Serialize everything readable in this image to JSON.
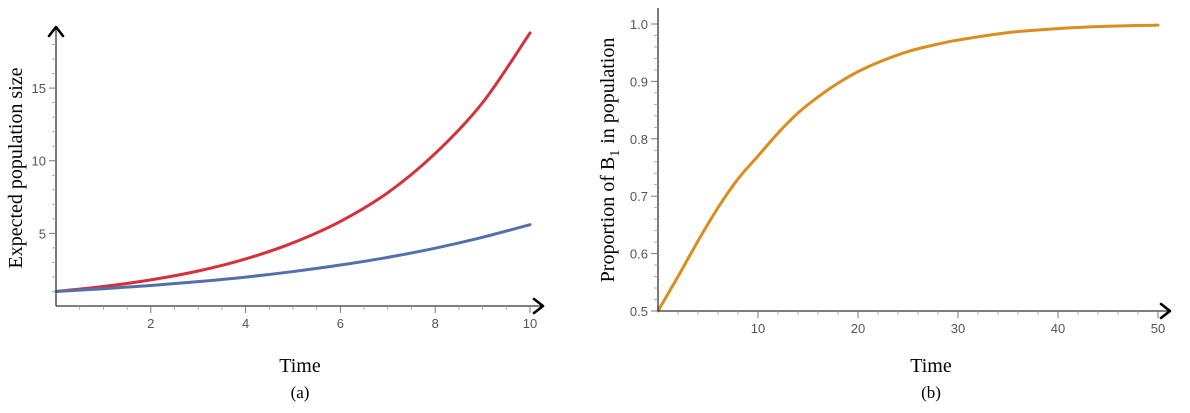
{
  "chart_data": [
    {
      "type": "line",
      "panel_label": "(a)",
      "xlabel": "Time",
      "ylabel": "Expected population size",
      "xlim": [
        0,
        10
      ],
      "ylim": [
        0,
        19
      ],
      "x_ticks": [
        2,
        4,
        6,
        8,
        10
      ],
      "y_ticks": [
        5,
        10,
        15
      ],
      "grid": false,
      "series": [
        {
          "color": "#d4313b",
          "x": [
            0,
            1,
            2,
            3,
            4,
            5,
            6,
            7,
            8,
            9,
            10
          ],
          "values": [
            1.0,
            1.34,
            1.8,
            2.41,
            3.24,
            4.35,
            5.82,
            7.8,
            10.5,
            14.0,
            18.8
          ]
        },
        {
          "color": "#5470a8",
          "x": [
            0,
            1,
            2,
            3,
            4,
            5,
            6,
            7,
            8,
            9,
            10
          ],
          "values": [
            1.0,
            1.19,
            1.41,
            1.68,
            1.99,
            2.37,
            2.82,
            3.35,
            3.98,
            4.73,
            5.6
          ]
        }
      ]
    },
    {
      "type": "line",
      "panel_label": "(b)",
      "xlabel": "Time",
      "ylabel": "Proportion of B",
      "ylabel_subscript": "1",
      "ylabel_suffix": "in population",
      "xlim": [
        0,
        50
      ],
      "ylim": [
        0.5,
        1.0
      ],
      "x_ticks": [
        10,
        20,
        30,
        40,
        50
      ],
      "y_ticks": [
        0.5,
        0.6,
        0.7,
        0.8,
        0.9,
        1.0
      ],
      "grid": false,
      "series": [
        {
          "color": "#d98e1f",
          "x": [
            0,
            2,
            4,
            6,
            8,
            10,
            12,
            14,
            16,
            18,
            20,
            22,
            25,
            28,
            30,
            35,
            40,
            45,
            50
          ],
          "values": [
            0.5,
            0.56,
            0.622,
            0.68,
            0.73,
            0.77,
            0.81,
            0.845,
            0.873,
            0.897,
            0.917,
            0.933,
            0.952,
            0.965,
            0.972,
            0.985,
            0.992,
            0.996,
            0.998
          ]
        }
      ]
    }
  ]
}
